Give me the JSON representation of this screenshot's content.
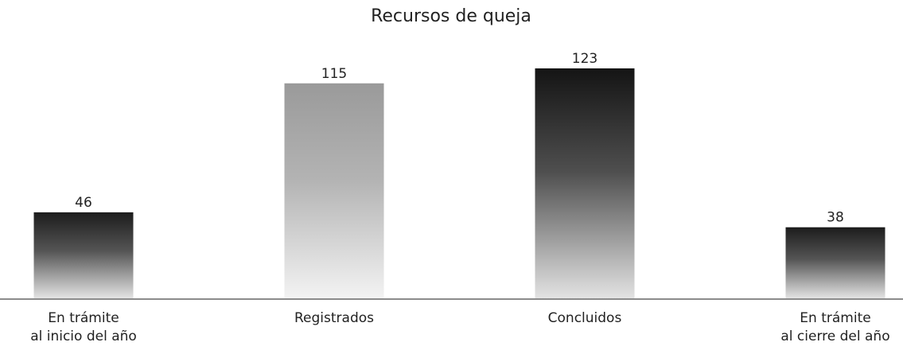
{
  "chart_data": {
    "type": "bar",
    "title": "Recursos de queja",
    "categories": [
      [
        "En trámite",
        "al inicio del año"
      ],
      [
        "Registrados"
      ],
      [
        "Concluidos"
      ],
      [
        "En trámite",
        "al cierre del año"
      ]
    ],
    "values": [
      46,
      115,
      123,
      38
    ],
    "colors": [
      "#1c1c1c",
      "#9a9a9a",
      "#141414",
      "#1c1c1c"
    ],
    "ylim": [
      0,
      130
    ]
  }
}
